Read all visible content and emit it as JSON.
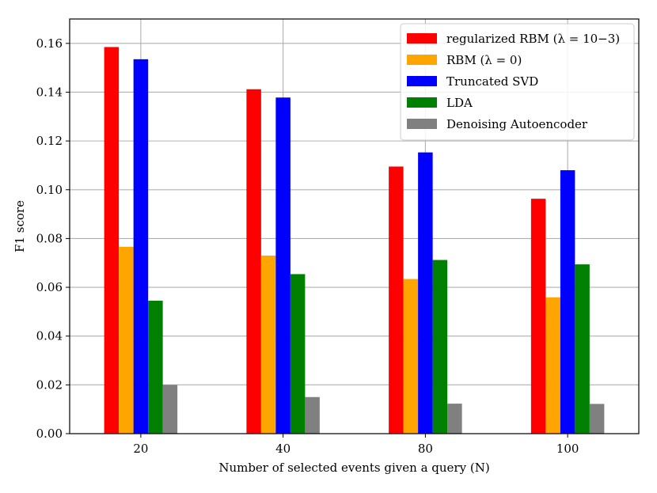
{
  "chart_data": {
    "type": "bar",
    "title": "",
    "xlabel": "Number of selected events given a query (N)",
    "ylabel": "F1 score",
    "categories": [
      "20",
      "40",
      "80",
      "100"
    ],
    "ylim": [
      0,
      0.17
    ],
    "yticks": [
      "0.00",
      "0.02",
      "0.04",
      "0.06",
      "0.08",
      "0.10",
      "0.12",
      "0.14",
      "0.16"
    ],
    "grid": true,
    "legend_position": "top-right",
    "series": [
      {
        "name": "regularized RBM (λ = 10−3)",
        "color": "#ff0000",
        "values": [
          0.1585,
          0.1412,
          0.1095,
          0.0963
        ]
      },
      {
        "name": "RBM (λ = 0)",
        "color": "#ffa500",
        "values": [
          0.0766,
          0.073,
          0.0634,
          0.0559
        ]
      },
      {
        "name": "Truncated SVD",
        "color": "#0000ff",
        "values": [
          0.1535,
          0.1378,
          0.1153,
          0.108
        ]
      },
      {
        "name": "LDA",
        "color": "#008000",
        "values": [
          0.0545,
          0.0654,
          0.0712,
          0.0694
        ]
      },
      {
        "name": "Denoising Autoencoder",
        "color": "#808080",
        "values": [
          0.02,
          0.015,
          0.0123,
          0.0122
        ]
      }
    ]
  }
}
